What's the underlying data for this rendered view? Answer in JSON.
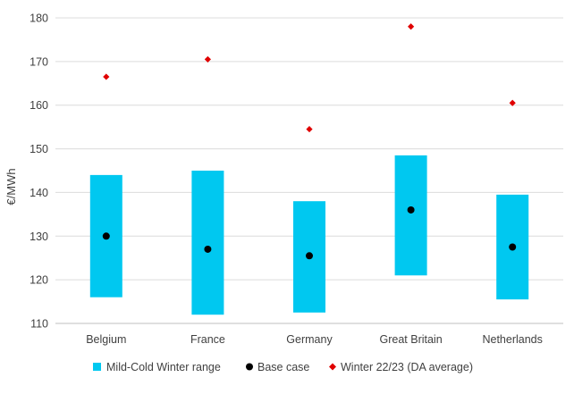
{
  "chart_data": {
    "type": "bar",
    "title": "",
    "xlabel": "",
    "ylabel": "€/MWh",
    "ylim": [
      110,
      180
    ],
    "yticks": [
      110,
      120,
      130,
      140,
      150,
      160,
      170,
      180
    ],
    "grid": true,
    "legend_position": "bottom",
    "categories": [
      "Belgium",
      "France",
      "Germany",
      "Great Britain",
      "Netherlands"
    ],
    "series": [
      {
        "name": "Mild-Cold Winter range",
        "kind": "range-bar",
        "color": "#00c8f0",
        "low": [
          116,
          112,
          112.5,
          121,
          115.5
        ],
        "high": [
          144,
          145,
          138,
          148.5,
          139.5
        ]
      },
      {
        "name": "Base case",
        "kind": "dot",
        "color": "#000000",
        "values": [
          130,
          127,
          125.5,
          136,
          127.5
        ]
      },
      {
        "name": "Winter 22/23 (DA average)",
        "kind": "diamond",
        "color": "#e00000",
        "values": [
          166.5,
          170.5,
          154.5,
          178,
          160.5
        ]
      }
    ]
  }
}
